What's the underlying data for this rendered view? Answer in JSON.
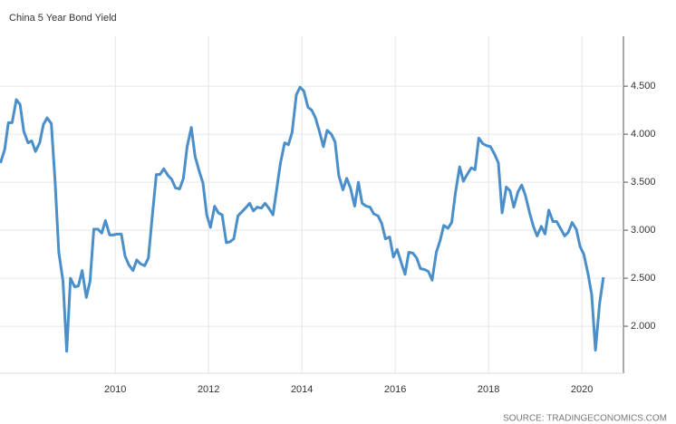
{
  "chart_data": {
    "type": "line",
    "title": "China 5 Year Bond Yield",
    "source": "SOURCE: TRADINGECONOMICS.COM",
    "x": [
      2007.54,
      2007.63,
      2007.71,
      2007.79,
      2007.88,
      2007.96,
      2008.04,
      2008.13,
      2008.21,
      2008.29,
      2008.38,
      2008.46,
      2008.54,
      2008.63,
      2008.71,
      2008.79,
      2008.88,
      2008.96,
      2009.04,
      2009.13,
      2009.21,
      2009.29,
      2009.38,
      2009.46,
      2009.54,
      2009.63,
      2009.71,
      2009.79,
      2009.88,
      2009.96,
      2010.04,
      2010.13,
      2010.21,
      2010.29,
      2010.38,
      2010.46,
      2010.54,
      2010.63,
      2010.71,
      2010.79,
      2010.88,
      2010.96,
      2011.04,
      2011.13,
      2011.21,
      2011.29,
      2011.38,
      2011.46,
      2011.54,
      2011.63,
      2011.71,
      2011.79,
      2011.88,
      2011.96,
      2012.04,
      2012.13,
      2012.21,
      2012.29,
      2012.38,
      2012.46,
      2012.54,
      2012.63,
      2012.71,
      2012.79,
      2012.88,
      2012.96,
      2013.04,
      2013.13,
      2013.21,
      2013.29,
      2013.38,
      2013.46,
      2013.54,
      2013.63,
      2013.71,
      2013.79,
      2013.88,
      2013.96,
      2014.04,
      2014.13,
      2014.21,
      2014.29,
      2014.38,
      2014.46,
      2014.54,
      2014.63,
      2014.71,
      2014.79,
      2014.88,
      2014.96,
      2015.04,
      2015.13,
      2015.21,
      2015.29,
      2015.38,
      2015.46,
      2015.54,
      2015.63,
      2015.71,
      2015.79,
      2015.88,
      2015.96,
      2016.04,
      2016.13,
      2016.21,
      2016.29,
      2016.38,
      2016.46,
      2016.54,
      2016.63,
      2016.71,
      2016.79,
      2016.88,
      2016.96,
      2017.04,
      2017.13,
      2017.21,
      2017.29,
      2017.38,
      2017.46,
      2017.54,
      2017.63,
      2017.71,
      2017.79,
      2017.88,
      2017.96,
      2018.04,
      2018.13,
      2018.21,
      2018.29,
      2018.38,
      2018.46,
      2018.54,
      2018.63,
      2018.71,
      2018.79,
      2018.88,
      2018.96,
      2019.04,
      2019.13,
      2019.21,
      2019.29,
      2019.38,
      2019.46,
      2019.54,
      2019.63,
      2019.71,
      2019.79,
      2019.88,
      2019.96,
      2020.04,
      2020.13,
      2020.21,
      2020.29,
      2020.38,
      2020.46
    ],
    "values": [
      3.7,
      3.84,
      4.12,
      4.12,
      4.36,
      4.31,
      4.03,
      3.91,
      3.93,
      3.82,
      3.91,
      4.1,
      4.17,
      4.11,
      3.51,
      2.77,
      2.47,
      1.74,
      2.5,
      2.41,
      2.42,
      2.58,
      2.3,
      2.47,
      3.01,
      3.01,
      2.97,
      3.1,
      2.95,
      2.95,
      2.96,
      2.96,
      2.73,
      2.64,
      2.58,
      2.69,
      2.65,
      2.63,
      2.71,
      3.13,
      3.58,
      3.58,
      3.64,
      3.57,
      3.53,
      3.44,
      3.43,
      3.54,
      3.87,
      4.07,
      3.77,
      3.63,
      3.49,
      3.16,
      3.03,
      3.25,
      3.18,
      3.16,
      2.87,
      2.88,
      2.91,
      3.15,
      3.19,
      3.23,
      3.28,
      3.2,
      3.24,
      3.23,
      3.28,
      3.23,
      3.16,
      3.43,
      3.7,
      3.91,
      3.89,
      4.02,
      4.41,
      4.49,
      4.45,
      4.28,
      4.25,
      4.17,
      4.02,
      3.87,
      4.04,
      4.0,
      3.92,
      3.57,
      3.42,
      3.54,
      3.44,
      3.25,
      3.5,
      3.28,
      3.25,
      3.24,
      3.17,
      3.15,
      3.07,
      2.91,
      2.93,
      2.72,
      2.8,
      2.66,
      2.54,
      2.77,
      2.76,
      2.71,
      2.6,
      2.59,
      2.57,
      2.48,
      2.77,
      2.89,
      3.05,
      3.02,
      3.08,
      3.39,
      3.66,
      3.51,
      3.58,
      3.65,
      3.63,
      3.96,
      3.9,
      3.88,
      3.87,
      3.79,
      3.7,
      3.18,
      3.45,
      3.41,
      3.24,
      3.4,
      3.47,
      3.36,
      3.18,
      3.04,
      2.94,
      3.04,
      2.96,
      3.21,
      3.09,
      3.09,
      3.02,
      2.94,
      2.98,
      3.08,
      3.01,
      2.83,
      2.75,
      2.55,
      2.33,
      1.75,
      2.24,
      2.51
    ],
    "color": "#4a8fc9",
    "xlim": [
      2007.53,
      2020.89
    ],
    "xticks": [
      2010,
      2012,
      2014,
      2016,
      2018,
      2020
    ],
    "ylim": [
      1.51,
      5.02
    ],
    "yticks": [
      {
        "value": 2.0,
        "label": "2.000"
      },
      {
        "value": 2.5,
        "label": "2.500"
      },
      {
        "value": 3.0,
        "label": "3.000"
      },
      {
        "value": 3.5,
        "label": "3.500"
      },
      {
        "value": 4.0,
        "label": "4.000"
      },
      {
        "value": 4.5,
        "label": "4.500"
      }
    ],
    "grid": true
  }
}
